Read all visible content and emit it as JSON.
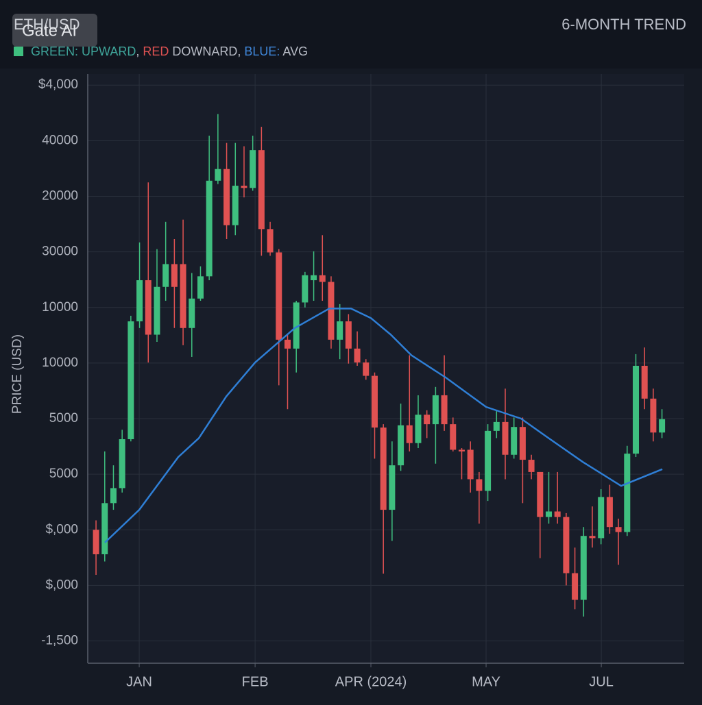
{
  "chart_data": {
    "type": "candlestick",
    "title": "ETH/USD",
    "watermark": "Gate AI",
    "subtitle": "6-MONTH TREND",
    "legend_parts": [
      {
        "text": "GREEN: UPWARD",
        "color": "#3fa59a"
      },
      {
        "text": ", ",
        "color": "#b8bcc6"
      },
      {
        "text": "RED",
        "color": "#e05252"
      },
      {
        "text": " DOWNARD, ",
        "color": "#b8bcc6"
      },
      {
        "text": "BLUE:",
        "color": "#3f86d8"
      },
      {
        "text": " AVG",
        "color": "#b8bcc6"
      }
    ],
    "y_label": "PRICE (USD)",
    "up_color": "#3fbf7f",
    "down_color": "#e05252",
    "avg_color": "#2f7fd6",
    "grid": true,
    "xlim": [
      -0.95,
      67.55
    ],
    "xticks": [
      {
        "value": 4.96,
        "label": "JAN"
      },
      {
        "value": 18.27,
        "label": "FEB"
      },
      {
        "value": 31.57,
        "label": "APR (2024)"
      },
      {
        "value": 44.8,
        "label": "MAY"
      },
      {
        "value": 58.03,
        "label": "JUL"
      }
    ],
    "ylim": [
      -0.4,
      10.2
    ],
    "yticks": [
      {
        "value": 0,
        "label": "-1,500"
      },
      {
        "value": 1,
        "label": "$,000"
      },
      {
        "value": 2,
        "label": "$,000"
      },
      {
        "value": 3,
        "label": "5000"
      },
      {
        "value": 4,
        "label": "5000"
      },
      {
        "value": 5,
        "label": "10000"
      },
      {
        "value": 6,
        "label": "10000"
      },
      {
        "value": 7,
        "label": "30000"
      },
      {
        "value": 8,
        "label": "20000"
      },
      {
        "value": 9,
        "label": "40000"
      },
      {
        "value": 10,
        "label": "$4,000"
      }
    ],
    "open": [
      2.0,
      1.56,
      2.48,
      2.75,
      3.63,
      5.75,
      6.49,
      5.51,
      6.37,
      6.78,
      6.78,
      5.63,
      6.16,
      6.56,
      8.28,
      8.49,
      7.48,
      8.19,
      8.15,
      8.83,
      7.41,
      6.99,
      5.42,
      5.26,
      6.09,
      6.49,
      6.58,
      6.46,
      5.42,
      5.75,
      5.26,
      5.01,
      4.77,
      3.84,
      2.36,
      3.16,
      3.88,
      3.56,
      4.07,
      3.9,
      4.42,
      3.9,
      3.44,
      3.44,
      2.91,
      2.7,
      3.78,
      3.94,
      3.35,
      3.85,
      3.26,
      3.04,
      2.23,
      2.33,
      2.23,
      1.22,
      0.74,
      1.89,
      1.85,
      2.59,
      2.05,
      1.96,
      3.37,
      4.95,
      4.36,
      3.75
    ],
    "high": [
      2.17,
      3.41,
      3.16,
      3.8,
      5.85,
      7.17,
      8.25,
      7.05,
      7.54,
      7.23,
      7.58,
      6.62,
      6.74,
      9.09,
      9.48,
      8.96,
      8.96,
      8.9,
      9.09,
      9.25,
      7.54,
      7.05,
      5.51,
      6.12,
      6.64,
      7.01,
      7.3,
      6.56,
      6.06,
      5.88,
      5.57,
      5.07,
      4.83,
      3.9,
      3.59,
      4.27,
      5.14,
      4.42,
      4.15,
      4.57,
      5.14,
      4.02,
      3.47,
      3.59,
      3.04,
      3.9,
      4.15,
      4.54,
      4.02,
      4.02,
      3.35,
      3.04,
      3.04,
      3.04,
      2.3,
      1.68,
      2.05,
      2.42,
      2.73,
      2.81,
      2.2,
      3.51,
      5.16,
      5.28,
      4.54,
      4.17
    ],
    "low": [
      1.19,
      1.43,
      2.36,
      2.67,
      3.59,
      5.63,
      5.01,
      5.38,
      6.12,
      5.63,
      5.32,
      5.11,
      6.12,
      6.49,
      8.22,
      7.23,
      7.3,
      7.98,
      8.1,
      6.93,
      6.93,
      4.6,
      4.17,
      4.83,
      6.0,
      6.12,
      6.12,
      5.26,
      5.07,
      4.99,
      4.95,
      4.7,
      3.28,
      1.21,
      1.8,
      3.06,
      3.41,
      3.47,
      3.65,
      3.19,
      3.78,
      3.41,
      2.91,
      2.67,
      2.11,
      2.52,
      3.65,
      2.91,
      3.28,
      2.48,
      2.91,
      1.49,
      2.11,
      2.11,
      1.0,
      0.57,
      0.44,
      1.68,
      1.74,
      1.93,
      1.37,
      1.89,
      3.31,
      4.17,
      3.59,
      3.65
    ],
    "close": [
      1.56,
      2.48,
      2.75,
      3.63,
      5.75,
      6.49,
      5.51,
      6.37,
      6.78,
      6.37,
      5.63,
      6.16,
      6.56,
      8.28,
      8.49,
      7.48,
      8.19,
      8.15,
      8.83,
      7.41,
      6.99,
      5.42,
      5.26,
      6.09,
      6.58,
      6.58,
      6.46,
      5.42,
      5.75,
      5.26,
      5.01,
      4.77,
      3.84,
      2.36,
      3.16,
      3.88,
      3.56,
      4.07,
      3.9,
      4.42,
      3.9,
      3.44,
      3.41,
      2.91,
      2.7,
      3.78,
      3.94,
      3.35,
      3.85,
      3.26,
      3.04,
      2.23,
      2.33,
      2.23,
      1.22,
      0.74,
      1.89,
      1.85,
      2.59,
      2.05,
      1.96,
      3.37,
      4.95,
      4.36,
      3.75,
      3.99
    ],
    "avg": {
      "x": [
        1.02,
        4.96,
        9.45,
        11.81,
        14.96,
        18.27,
        22.83,
        26.77,
        29.29,
        31.57,
        33.86,
        36.22,
        40.16,
        44.8,
        48.82,
        51.97,
        55.91,
        60.31,
        65.04
      ],
      "values": [
        1.77,
        2.36,
        3.31,
        3.65,
        4.4,
        5.01,
        5.63,
        5.98,
        5.98,
        5.81,
        5.51,
        5.14,
        4.74,
        4.21,
        4.0,
        3.65,
        3.22,
        2.79,
        3.09
      ]
    }
  }
}
